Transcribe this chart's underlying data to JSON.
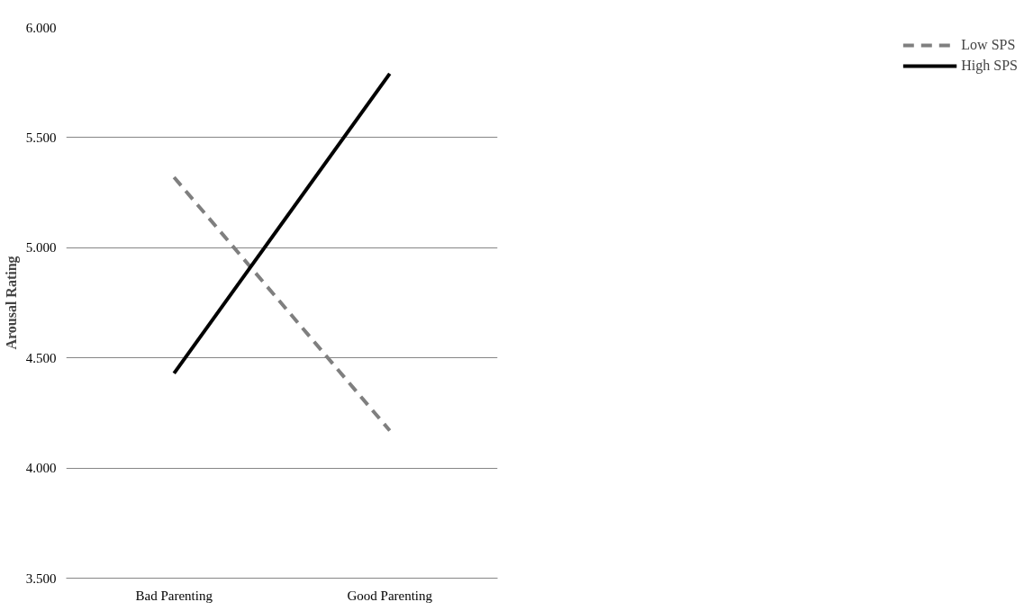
{
  "chart_data": {
    "type": "line",
    "ylabel": "Arousal Rating",
    "categories": [
      "Bad Parenting",
      "Good Parenting"
    ],
    "series": [
      {
        "name": "Low SPS",
        "color": "#7f7f7f",
        "line_style": "dashed",
        "values": [
          5.32,
          4.17
        ]
      },
      {
        "name": "High SPS",
        "color": "#000000",
        "line_style": "solid",
        "values": [
          4.43,
          5.79
        ]
      }
    ],
    "ylim": [
      3.5,
      6.0
    ],
    "yticks": [
      {
        "value": 3.5,
        "label": "3.500"
      },
      {
        "value": 4.0,
        "label": "4.000"
      },
      {
        "value": 4.5,
        "label": "4.500"
      },
      {
        "value": 5.0,
        "label": "5.000"
      },
      {
        "value": 5.5,
        "label": "5.500"
      },
      {
        "value": 6.0,
        "label": "6.000"
      }
    ],
    "grid": "y",
    "legend": "right"
  }
}
